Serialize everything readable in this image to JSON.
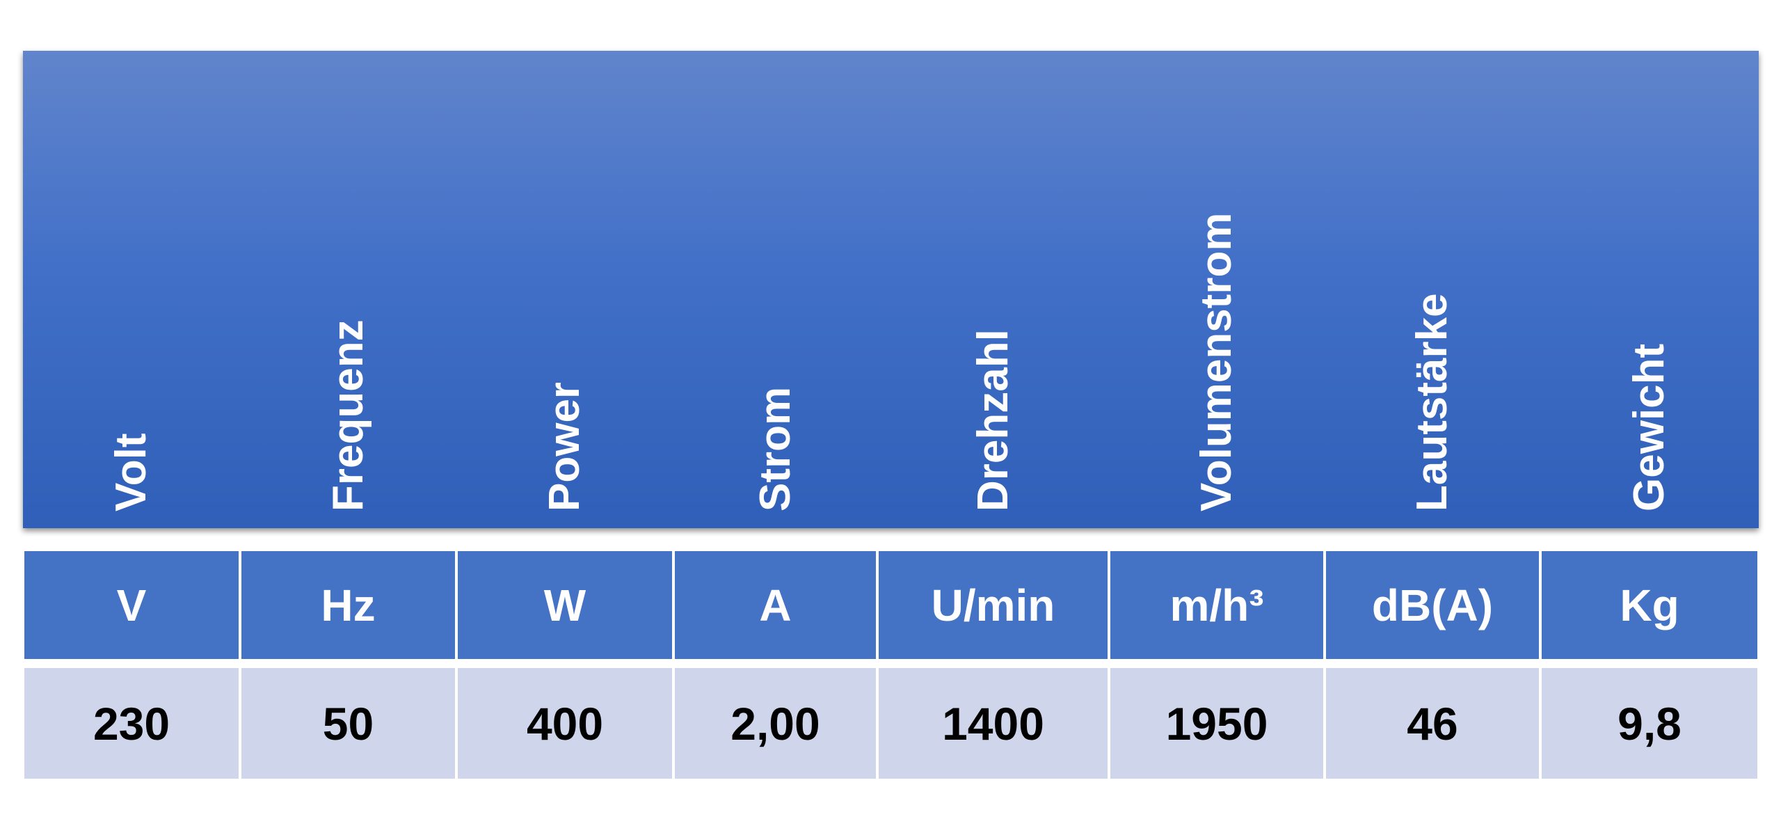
{
  "table": {
    "headers": [
      "Volt",
      "Frequenz",
      "Power",
      "Strom",
      "Drehzahl",
      "Volumenstrom",
      "Lautstärke",
      "Gewicht"
    ],
    "units": [
      "V",
      "Hz",
      "W",
      "A",
      "U/min",
      "m/h³",
      "dB(A)",
      "Kg"
    ],
    "values": [
      "230",
      "50",
      "400",
      "2,00",
      "1400",
      "1950",
      "46",
      "9,8"
    ]
  }
}
